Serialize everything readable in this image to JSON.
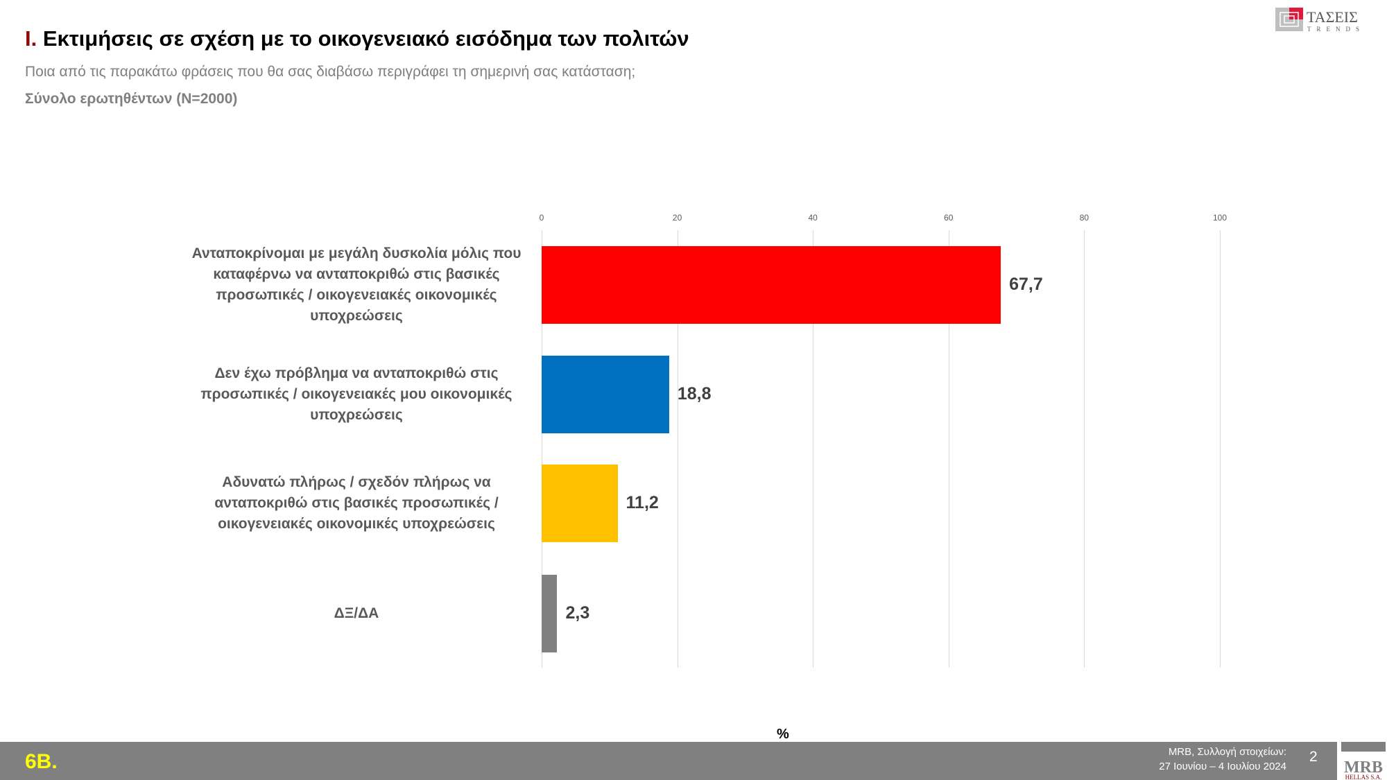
{
  "header": {
    "title_num": "I.",
    "title": "Εκτιμήσεις σε σχέση με το οικογενειακό εισόδημα των πολιτών",
    "subtitle": "Ποια από τις παρακάτω φράσεις που θα σας διαβάσω περιγράφει τη σημερινή σας κατάσταση;",
    "base": "Σύνολο ερωτηθέντων (N=2000)"
  },
  "logos": {
    "top": "ΤΑΣΕΙΣ TRENDS",
    "bottom": "MRB HELLAS S.A."
  },
  "chart_data": {
    "type": "bar",
    "orientation": "horizontal",
    "categories": [
      "Ανταποκρίνομαι με μεγάλη δυσκολία μόλις που καταφέρνω να ανταποκριθώ στις βασικές προσωπικές / οικογενειακές οικονομικές υποχρεώσεις",
      "Δεν έχω πρόβλημα να ανταποκριθώ στις προσωπικές / οικογενειακές μου οικονομικές υποχρεώσεις",
      "Αδυνατώ πλήρως / σχεδόν πλήρως να ανταποκριθώ στις βασικές προσωπικές / οικογενειακές οικονομικές υποχρεώσεις",
      "ΔΞ/ΔΑ"
    ],
    "values": [
      67.7,
      18.8,
      11.2,
      2.3
    ],
    "value_labels": [
      "67,7",
      "18,8",
      "11,2",
      "2,3"
    ],
    "colors": [
      "#ff0000",
      "#0070c0",
      "#ffc000",
      "#808080"
    ],
    "xlim": [
      0,
      100
    ],
    "xticks": [
      "0",
      "20",
      "40",
      "60",
      "80",
      "100"
    ],
    "xlabel": "%",
    "grid": true
  },
  "footer": {
    "code": "6B.",
    "source_line1": "MRB, Συλλογή στοιχείων:",
    "source_line2": "27 Ιουνίου – 4 Ιουλίου 2024",
    "page": "2"
  }
}
